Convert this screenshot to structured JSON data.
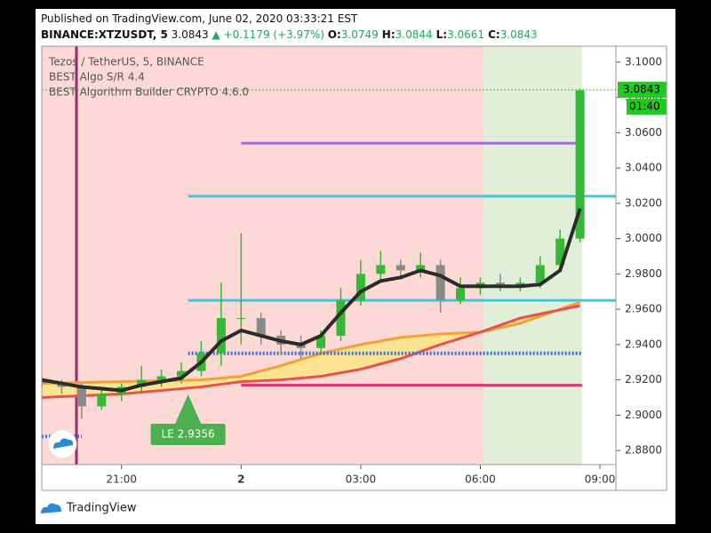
{
  "header": {
    "published": "Published on TradingView.com, June 02, 2020 03:33:21 EST",
    "symbol": "BINANCE:XTZUSDT, 5",
    "last": "3.0843",
    "change": "▲ +0.1179 (+3.97%)",
    "ohlc": [
      {
        "label": "O:",
        "value": "3.0749"
      },
      {
        "label": "H:",
        "value": "3.0844"
      },
      {
        "label": "L:",
        "value": "3.0661"
      },
      {
        "label": "C:",
        "value": "3.0843"
      }
    ]
  },
  "footer": {
    "brand": "TradingView"
  },
  "chart_data": {
    "type": "candlestick",
    "legend_texts": [
      "Tezos / TetherUS, 5, BINANCE",
      "BEST Algo S/R 4.4",
      "BEST Algorithm Builder CRYPTO 4.6.0"
    ],
    "xlim": [
      19,
      33.4
    ],
    "xticks": [
      {
        "value": 21,
        "label": "21:00"
      },
      {
        "value": 24,
        "label": "2"
      },
      {
        "value": 27,
        "label": "03:00"
      },
      {
        "value": 30,
        "label": "06:00"
      },
      {
        "value": 33,
        "label": "09:00"
      }
    ],
    "ylim": [
      2.872,
      3.109
    ],
    "yticks": [
      {
        "value": 2.88,
        "label": "2.8800"
      },
      {
        "value": 2.9,
        "label": "2.9000"
      },
      {
        "value": 2.92,
        "label": "2.9200"
      },
      {
        "value": 2.94,
        "label": "2.9400"
      },
      {
        "value": 2.96,
        "label": "2.9600"
      },
      {
        "value": 2.98,
        "label": "2.9800"
      },
      {
        "value": 3.0,
        "label": "3.0000"
      },
      {
        "value": 3.02,
        "label": "3.0200"
      },
      {
        "value": 3.04,
        "label": "3.0400"
      },
      {
        "value": 3.06,
        "label": "3.0600"
      },
      {
        "value": 3.08,
        "label": "3.0800"
      },
      {
        "value": 3.1,
        "label": "3.1000"
      }
    ],
    "up_color": "#35b835",
    "down_color": "#8a8a8a",
    "x": [
      19,
      19.5,
      20,
      20.5,
      21,
      21.5,
      22,
      22.5,
      23,
      23.5,
      24,
      24.5,
      25,
      25.5,
      26,
      26.5,
      27,
      27.5,
      28,
      28.5,
      29,
      29.5,
      30,
      30.5,
      31,
      31.5,
      32,
      32.5
    ],
    "open": [
      2.92,
      2.918,
      2.916,
      2.905,
      2.912,
      2.916,
      2.92,
      2.922,
      2.925,
      2.935,
      2.955,
      2.955,
      2.945,
      2.94,
      2.938,
      2.945,
      2.965,
      2.98,
      2.985,
      2.982,
      2.985,
      2.965,
      2.972,
      2.975,
      2.974,
      2.975,
      2.985,
      3.0
    ],
    "high": [
      2.922,
      2.92,
      2.918,
      2.914,
      2.918,
      2.928,
      2.926,
      2.93,
      2.942,
      2.975,
      3.003,
      2.958,
      2.948,
      2.945,
      2.948,
      2.972,
      2.988,
      2.993,
      2.988,
      2.992,
      2.988,
      2.978,
      2.978,
      2.98,
      2.978,
      2.99,
      3.005,
      3.085
    ],
    "low": [
      2.915,
      2.912,
      2.898,
      2.903,
      2.908,
      2.912,
      2.916,
      2.918,
      2.922,
      2.928,
      2.94,
      2.94,
      2.934,
      2.932,
      2.934,
      2.942,
      2.962,
      2.975,
      2.977,
      2.978,
      2.958,
      2.963,
      2.968,
      2.97,
      2.97,
      2.972,
      2.982,
      2.998
    ],
    "close": [
      2.918,
      2.916,
      2.905,
      2.912,
      2.916,
      2.92,
      2.922,
      2.925,
      2.935,
      2.955,
      2.955,
      2.945,
      2.94,
      2.938,
      2.945,
      2.965,
      2.98,
      2.985,
      2.982,
      2.985,
      2.965,
      2.972,
      2.975,
      2.974,
      2.975,
      2.985,
      3.0,
      3.084
    ],
    "average": {
      "color": "#2b2b2b",
      "values": [
        2.92,
        2.918,
        2.916,
        2.915,
        2.914,
        2.917,
        2.919,
        2.921,
        2.93,
        2.942,
        2.948,
        2.945,
        2.942,
        2.94,
        2.945,
        2.958,
        2.97,
        2.976,
        2.978,
        2.982,
        2.979,
        2.973,
        2.973,
        2.973,
        2.973,
        2.974,
        2.982,
        3.017
      ]
    },
    "ribbon": {
      "x": [
        19,
        21,
        23,
        24,
        25,
        26,
        27,
        28,
        29,
        30,
        31,
        32.5
      ],
      "fill": "#fbe38a",
      "series": [
        {
          "color": "#f3a03a",
          "values": [
            2.918,
            2.919,
            2.92,
            2.922,
            2.928,
            2.935,
            2.94,
            2.944,
            2.946,
            2.947,
            2.952,
            2.964
          ]
        },
        {
          "color": "#e8524a",
          "values": [
            2.91,
            2.912,
            2.916,
            2.919,
            2.92,
            2.922,
            2.926,
            2.932,
            2.94,
            2.947,
            2.955,
            2.962
          ]
        }
      ]
    },
    "levels": [
      {
        "value": 3.054,
        "from": 24,
        "to": 32.55,
        "color": "#a06fd8",
        "dotted": false
      },
      {
        "value": 3.024,
        "from": 22.67,
        "to": 33.4,
        "color": "#3fc6e0",
        "dotted": false
      },
      {
        "value": 2.965,
        "from": 22.67,
        "to": 33.4,
        "color": "#3fc6e0",
        "dotted": false
      },
      {
        "value": 2.935,
        "from": 22.67,
        "to": 32.55,
        "color": "#3a6fe0",
        "dotted": true
      },
      {
        "value": 2.917,
        "from": 24,
        "to": 32.55,
        "color": "#e0326e",
        "dotted": false
      },
      {
        "value": 2.888,
        "from": 19,
        "to": 20,
        "color": "#3a6fe0",
        "dotted": true
      }
    ],
    "zones": [
      {
        "from": 19,
        "to": 30.08,
        "color": "#fcd9d5"
      },
      {
        "from": 30.08,
        "to": 32.55,
        "color": "#e1efd9"
      }
    ],
    "session_break": {
      "x": 19.87,
      "color": "#9b2a6a"
    },
    "entry": {
      "text": "LE 2.9356",
      "x": 22.67,
      "color": "#4caf50"
    },
    "price_tag": {
      "value": 3.0843,
      "color": "#1ecb1e"
    },
    "countdown": "01:40"
  }
}
